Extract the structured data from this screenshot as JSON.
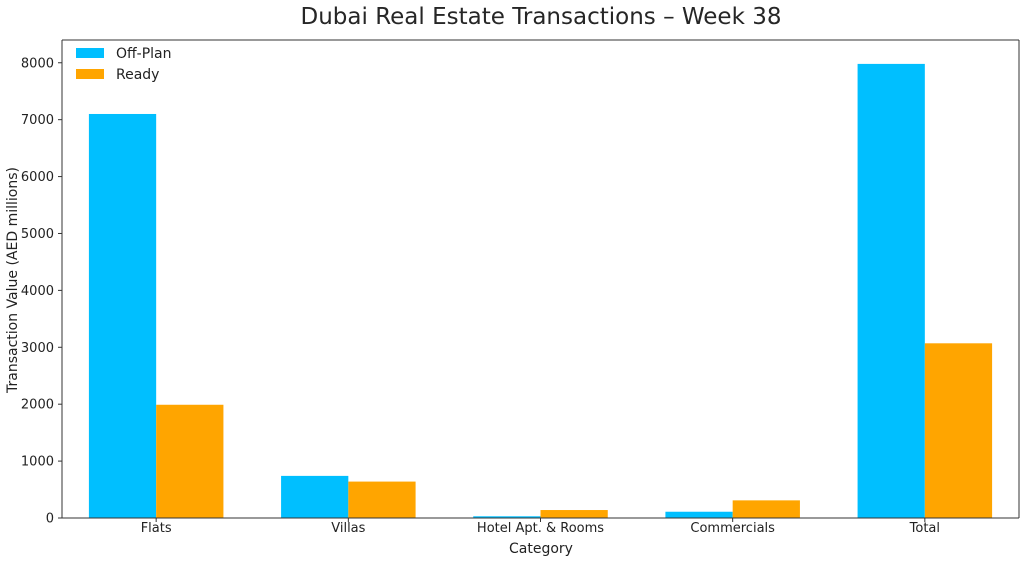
{
  "chart_data": {
    "type": "bar",
    "title": "Dubai Real Estate Transactions – Week 38",
    "xlabel": "Category",
    "ylabel": "Transaction Value (AED millions)",
    "categories": [
      "Flats",
      "Villas",
      "Hotel Apt. & Rooms",
      "Commercials",
      "Total"
    ],
    "series": [
      {
        "name": "Off-Plan",
        "color": "#00BFFF",
        "values": [
          7100,
          740,
          30,
          110,
          7980
        ]
      },
      {
        "name": "Ready",
        "color": "#FFA500",
        "values": [
          1990,
          640,
          140,
          310,
          3070
        ]
      }
    ],
    "ylim": [
      0,
      8400
    ],
    "yticks": [
      0,
      1000,
      2000,
      3000,
      4000,
      5000,
      6000,
      7000,
      8000
    ],
    "legend_position": "top-left",
    "grid": false
  }
}
